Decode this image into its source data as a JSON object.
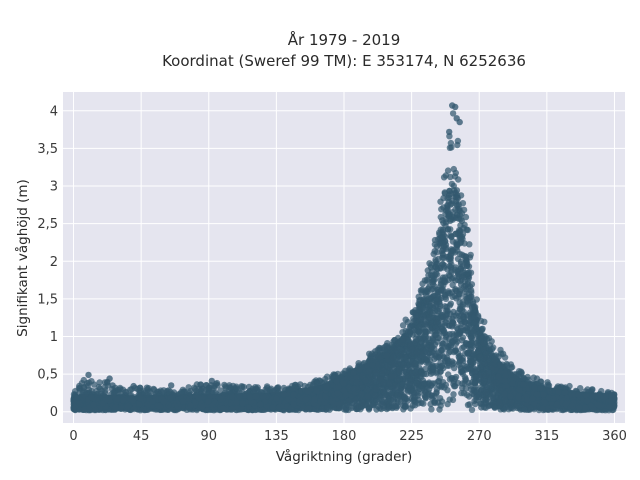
{
  "chart_data": {
    "type": "scatter",
    "title": "År 1979 - 2019",
    "subtitle": "Koordinat (Sweref 99 TM): E 353174, N 6252636",
    "xlabel": "Vågriktning (grader)",
    "ylabel": "Signifikant våghöjd (m)",
    "xlim": [
      -7,
      367
    ],
    "ylim": [
      -0.15,
      4.25
    ],
    "x_ticks": [
      0,
      45,
      90,
      135,
      180,
      225,
      270,
      315,
      360
    ],
    "y_ticks": [
      0,
      0.5,
      1,
      1.5,
      2,
      2.5,
      3,
      3.5,
      4
    ],
    "y_tick_labels": [
      "0",
      "0,5",
      "1",
      "1,5",
      "2",
      "2,5",
      "3",
      "3,5",
      "4"
    ],
    "grid": true,
    "legend": "none",
    "colors": {
      "marker": "#33596f",
      "plot_background": "#e5e5ef",
      "grid": "#ffffff"
    },
    "envelope_max_height": {
      "x": [
        0,
        10,
        20,
        30,
        45,
        60,
        75,
        90,
        105,
        120,
        135,
        150,
        165,
        180,
        195,
        210,
        220,
        230,
        235,
        240,
        245,
        248,
        250,
        252,
        254,
        256,
        258,
        260,
        263,
        266,
        270,
        275,
        280,
        285,
        290,
        300,
        315,
        330,
        345,
        360
      ],
      "y": [
        0.3,
        0.48,
        0.42,
        0.33,
        0.33,
        0.3,
        0.33,
        0.42,
        0.35,
        0.33,
        0.35,
        0.38,
        0.45,
        0.55,
        0.75,
        0.95,
        1.2,
        1.55,
        1.9,
        2.35,
        3.0,
        3.45,
        3.85,
        4.05,
        4.0,
        3.8,
        3.4,
        2.9,
        2.35,
        1.95,
        1.45,
        1.15,
        0.95,
        0.8,
        0.65,
        0.5,
        0.4,
        0.35,
        0.3,
        0.25
      ]
    },
    "envelope_dense_core": {
      "x": [
        0,
        45,
        90,
        135,
        165,
        180,
        195,
        210,
        220,
        230,
        240,
        245,
        250,
        253,
        256,
        260,
        265,
        270,
        280,
        290,
        300,
        315,
        330,
        345,
        360
      ],
      "y": [
        0.18,
        0.16,
        0.18,
        0.2,
        0.3,
        0.45,
        0.6,
        0.78,
        0.98,
        1.3,
        1.85,
        2.4,
        2.85,
        3.0,
        2.8,
        2.2,
        1.55,
        1.05,
        0.7,
        0.48,
        0.35,
        0.27,
        0.23,
        0.2,
        0.18
      ]
    },
    "outliers": [
      {
        "x": 10,
        "y": 0.49
      },
      {
        "x": 24,
        "y": 0.44
      },
      {
        "x": 26,
        "y": 0.35
      },
      {
        "x": 40,
        "y": 0.34
      },
      {
        "x": 65,
        "y": 0.35
      },
      {
        "x": 92,
        "y": 0.41
      },
      {
        "x": 252,
        "y": 4.07
      },
      {
        "x": 254,
        "y": 4.05
      },
      {
        "x": 255,
        "y": 3.9
      },
      {
        "x": 257,
        "y": 3.85
      },
      {
        "x": 250,
        "y": 3.72
      }
    ]
  }
}
